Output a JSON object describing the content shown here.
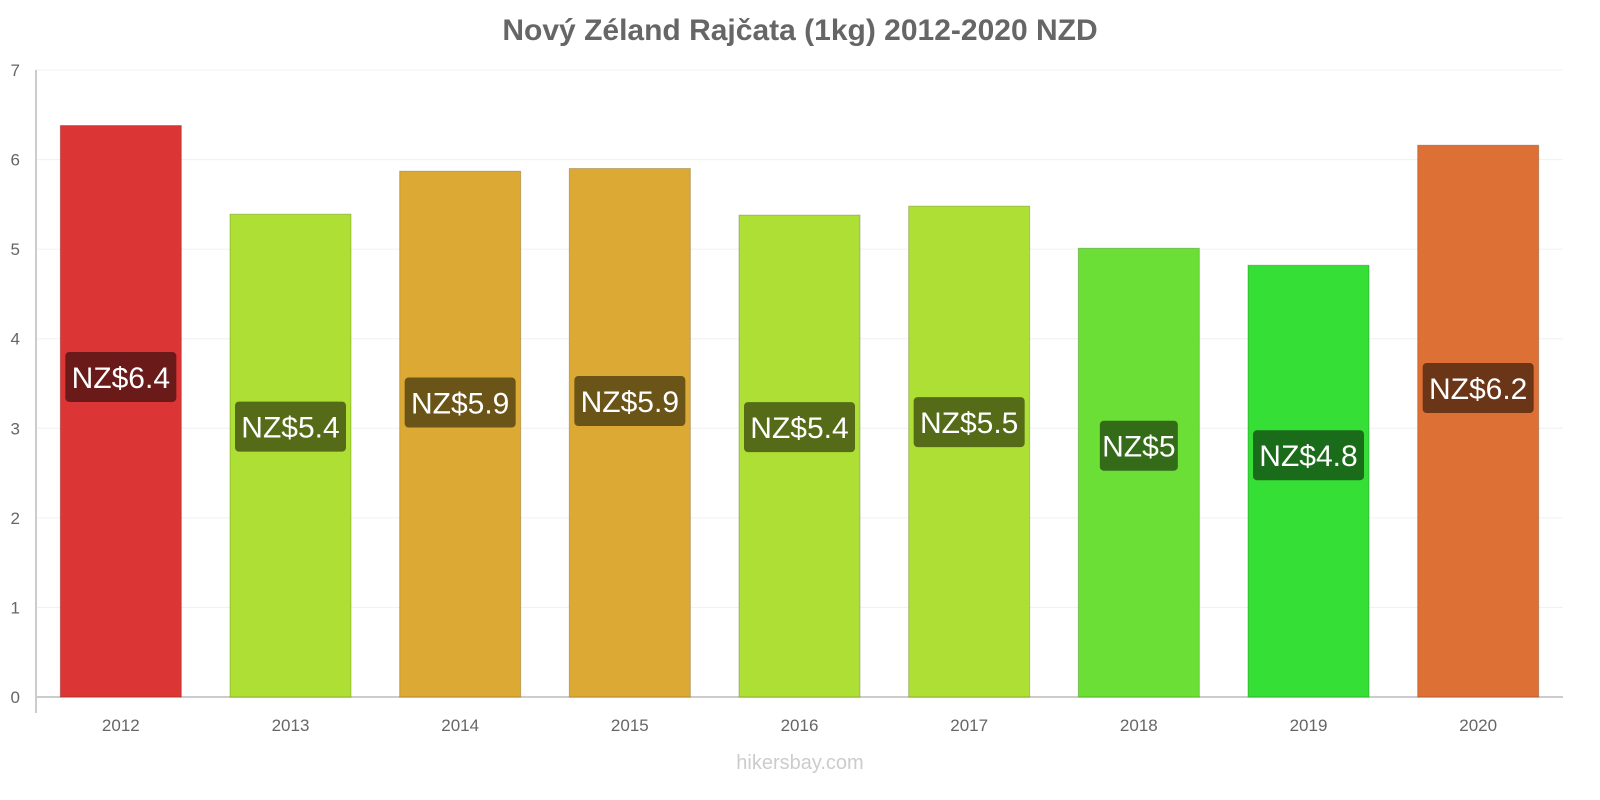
{
  "chart_data": {
    "type": "bar",
    "title": "Nový Zéland Rajčata (1kg) 2012-2020 NZD",
    "xlabel": "",
    "ylabel": "",
    "ylim": [
      0,
      7
    ],
    "yticks": [
      "0",
      "1",
      "2",
      "3",
      "4",
      "5",
      "6",
      "7"
    ],
    "grid": true,
    "categories": [
      "2012",
      "2013",
      "2014",
      "2015",
      "2016",
      "2017",
      "2018",
      "2019",
      "2020"
    ],
    "values": [
      6.38,
      5.39,
      5.87,
      5.9,
      5.38,
      5.48,
      5.01,
      4.82,
      6.16
    ],
    "labels": [
      "NZ$6.4",
      "NZ$5.4",
      "NZ$5.9",
      "NZ$5.9",
      "NZ$5.4",
      "NZ$5.5",
      "NZ$5",
      "NZ$4.8",
      "NZ$6.2"
    ],
    "colors": [
      "#dc3535",
      "#aedf35",
      "#dca935",
      "#dca935",
      "#aedf35",
      "#aedf35",
      "#6bdf35",
      "#35df35",
      "#dd7035"
    ],
    "label_colors": [
      "#6b1a1a",
      "#556b18",
      "#6b5418",
      "#6b5418",
      "#556b18",
      "#556b18",
      "#336b18",
      "#1a6b1a",
      "#6b3518"
    ]
  },
  "watermark": "hikersbay.com"
}
